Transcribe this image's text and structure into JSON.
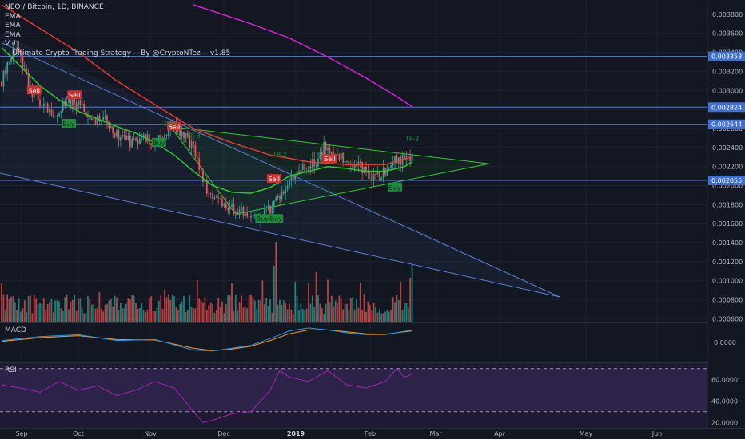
{
  "legend": {
    "symbol": "NEO / Bitcoin, 1D, BINANCE",
    "ema1": "EMA",
    "ema2": "EMA",
    "ema3": "EMA",
    "vol": "Vol",
    "strategy": "-- Ultimate Crypto Trading Strategy -- By @CryptoNTez -- v1.85"
  },
  "panes": {
    "macd": "MACD",
    "rsi": "RSI"
  },
  "colors": {
    "background": "#131722",
    "grid": "#1e222d",
    "up": "#26a69a",
    "down": "#ef5350",
    "ema_fast": "#31c831",
    "ema_mid": "#e53935",
    "ema_slow": "#d81fd8",
    "hline": "#5b7ed1",
    "triangle": "#31c831",
    "rsi": "#9c27b0",
    "macd": "#2196f3",
    "signal": "#ff9800"
  },
  "chart_data": {
    "type": "candlestick",
    "title": "NEO / Bitcoin, 1D, BINANCE",
    "x_ticks": [
      "Sep",
      "Oct",
      "Nov",
      "Dec",
      "2019",
      "Feb",
      "Mar",
      "Apr",
      "May",
      "Jun"
    ],
    "price_ticks": [
      "0.003800",
      "0.003600",
      "0.003400",
      "0.003200",
      "0.003000",
      "0.002800",
      "0.002600",
      "0.002400",
      "0.002200",
      "0.002000",
      "0.001800",
      "0.001600",
      "0.001400",
      "0.001200",
      "0.001000",
      "0.000800",
      "0.000600"
    ],
    "price_range": [
      0.00057,
      0.00395
    ],
    "horizontal_levels": [
      {
        "label": "0.003358",
        "value": 0.003358
      },
      {
        "label": "0.002824",
        "value": 0.002824
      },
      {
        "label": "0.002644",
        "value": 0.002644
      },
      {
        "label": "0.002055",
        "value": 0.002055
      }
    ],
    "candle_anchors": [
      [
        0,
        0.0031
      ],
      [
        4,
        0.00335
      ],
      [
        8,
        0.00345
      ],
      [
        14,
        0.00305
      ],
      [
        20,
        0.00285
      ],
      [
        28,
        0.00275
      ],
      [
        34,
        0.0029
      ],
      [
        40,
        0.00285
      ],
      [
        48,
        0.0027
      ],
      [
        54,
        0.00275
      ],
      [
        58,
        0.00255
      ],
      [
        64,
        0.0025
      ],
      [
        68,
        0.00245
      ],
      [
        74,
        0.0025
      ],
      [
        80,
        0.00245
      ],
      [
        84,
        0.0025
      ],
      [
        88,
        0.00265
      ],
      [
        94,
        0.00255
      ],
      [
        100,
        0.0024
      ],
      [
        104,
        0.00215
      ],
      [
        108,
        0.0019
      ],
      [
        114,
        0.00185
      ],
      [
        122,
        0.00175
      ],
      [
        128,
        0.0017
      ],
      [
        134,
        0.00168
      ],
      [
        140,
        0.00175
      ],
      [
        146,
        0.0019
      ],
      [
        150,
        0.00205
      ],
      [
        154,
        0.00215
      ],
      [
        160,
        0.0022
      ],
      [
        164,
        0.00225
      ],
      [
        168,
        0.0024
      ],
      [
        172,
        0.00235
      ],
      [
        176,
        0.0023
      ],
      [
        180,
        0.00225
      ],
      [
        186,
        0.00222
      ],
      [
        192,
        0.0021
      ],
      [
        198,
        0.00212
      ],
      [
        204,
        0.00225
      ],
      [
        210,
        0.00228
      ],
      [
        214,
        0.0023
      ]
    ],
    "ema_fast": [
      [
        0,
        0.00345
      ],
      [
        10,
        0.00325
      ],
      [
        20,
        0.00305
      ],
      [
        30,
        0.0029
      ],
      [
        40,
        0.00278
      ],
      [
        50,
        0.0027
      ],
      [
        60,
        0.00262
      ],
      [
        70,
        0.00255
      ],
      [
        80,
        0.00245
      ],
      [
        90,
        0.00232
      ],
      [
        100,
        0.00215
      ],
      [
        110,
        0.002
      ],
      [
        120,
        0.00193
      ],
      [
        130,
        0.00192
      ],
      [
        140,
        0.00198
      ],
      [
        150,
        0.0021
      ],
      [
        160,
        0.00215
      ],
      [
        170,
        0.0022
      ],
      [
        180,
        0.00218
      ],
      [
        190,
        0.00215
      ],
      [
        200,
        0.00215
      ],
      [
        210,
        0.0022
      ],
      [
        214,
        0.00225
      ]
    ],
    "ema_mid": [
      [
        0,
        0.0039
      ],
      [
        20,
        0.00365
      ],
      [
        40,
        0.0034
      ],
      [
        60,
        0.0031
      ],
      [
        80,
        0.00285
      ],
      [
        100,
        0.0026
      ],
      [
        120,
        0.00245
      ],
      [
        140,
        0.00232
      ],
      [
        160,
        0.00225
      ],
      [
        180,
        0.00222
      ],
      [
        200,
        0.00222
      ],
      [
        214,
        0.0023
      ]
    ],
    "ema_slow": [
      [
        100,
        0.0039
      ],
      [
        130,
        0.0037
      ],
      [
        150,
        0.00355
      ],
      [
        170,
        0.00335
      ],
      [
        190,
        0.00313
      ],
      [
        204,
        0.00296
      ],
      [
        214,
        0.00283
      ]
    ],
    "signals": [
      {
        "type": "sell",
        "label": "Sell",
        "x": 17,
        "y": 0.003
      },
      {
        "type": "sell",
        "label": "Sell",
        "x": 38,
        "y": 0.00295
      },
      {
        "type": "buy",
        "label": "Buy",
        "x": 35,
        "y": 0.00265
      },
      {
        "type": "sell",
        "label": "Sell",
        "x": 90,
        "y": 0.00262
      },
      {
        "type": "buy",
        "label": "Buy",
        "x": 82,
        "y": 0.00245
      },
      {
        "type": "sell",
        "label": "Sell",
        "x": 142,
        "y": 0.00207
      },
      {
        "type": "buy",
        "label": "Buy",
        "x": 136,
        "y": 0.00165
      },
      {
        "type": "buy",
        "label": "Buy",
        "x": 143,
        "y": 0.00165
      },
      {
        "type": "sell",
        "label": "Sell",
        "x": 171,
        "y": 0.00228
      },
      {
        "type": "buy",
        "label": "Buy",
        "x": 205,
        "y": 0.00198
      }
    ],
    "tp_labels": [
      {
        "label": "TP-2",
        "x": 214,
        "y": 0.00247
      },
      {
        "label": "TP-2",
        "x": 145,
        "y": 0.0023
      },
      {
        "label": "TP-3",
        "x": 100,
        "y": 0.0025
      },
      {
        "label": "TP-2",
        "x": 88,
        "y": 0.00262
      }
    ],
    "volume_max": 0.00145,
    "macd_ticks": [
      "0.0000"
    ],
    "rsi_ticks": [
      "60.0000",
      "40.0000",
      "20.0000"
    ],
    "rsi_levels": [
      70,
      30
    ],
    "rsi_range": [
      15,
      75
    ],
    "rsi": [
      [
        0,
        55
      ],
      [
        10,
        52
      ],
      [
        20,
        48
      ],
      [
        30,
        58
      ],
      [
        40,
        50
      ],
      [
        50,
        54
      ],
      [
        60,
        45
      ],
      [
        70,
        50
      ],
      [
        80,
        58
      ],
      [
        90,
        52
      ],
      [
        100,
        30
      ],
      [
        105,
        20
      ],
      [
        110,
        22
      ],
      [
        120,
        28
      ],
      [
        130,
        30
      ],
      [
        140,
        50
      ],
      [
        145,
        68
      ],
      [
        150,
        62
      ],
      [
        160,
        58
      ],
      [
        170,
        68
      ],
      [
        180,
        55
      ],
      [
        190,
        52
      ],
      [
        200,
        58
      ],
      [
        206,
        70
      ],
      [
        210,
        62
      ],
      [
        214,
        65
      ]
    ],
    "macd": [
      [
        0,
        0.2
      ],
      [
        20,
        0.6
      ],
      [
        40,
        0.8
      ],
      [
        60,
        0.2
      ],
      [
        80,
        0.3
      ],
      [
        100,
        -0.8
      ],
      [
        110,
        -0.9
      ],
      [
        120,
        -0.6
      ],
      [
        130,
        -0.3
      ],
      [
        140,
        0.4
      ],
      [
        150,
        1.2
      ],
      [
        160,
        1.5
      ],
      [
        170,
        1.3
      ],
      [
        180,
        1.0
      ],
      [
        190,
        0.8
      ],
      [
        200,
        0.8
      ],
      [
        214,
        1.3
      ]
    ],
    "macd_signal": [
      [
        0,
        0.1
      ],
      [
        20,
        0.5
      ],
      [
        40,
        0.7
      ],
      [
        60,
        0.3
      ],
      [
        80,
        0.25
      ],
      [
        100,
        -0.6
      ],
      [
        110,
        -0.85
      ],
      [
        120,
        -0.7
      ],
      [
        130,
        -0.4
      ],
      [
        140,
        0.2
      ],
      [
        150,
        0.9
      ],
      [
        160,
        1.3
      ],
      [
        170,
        1.3
      ],
      [
        180,
        1.1
      ],
      [
        190,
        0.9
      ],
      [
        200,
        0.85
      ],
      [
        214,
        1.2
      ]
    ]
  }
}
